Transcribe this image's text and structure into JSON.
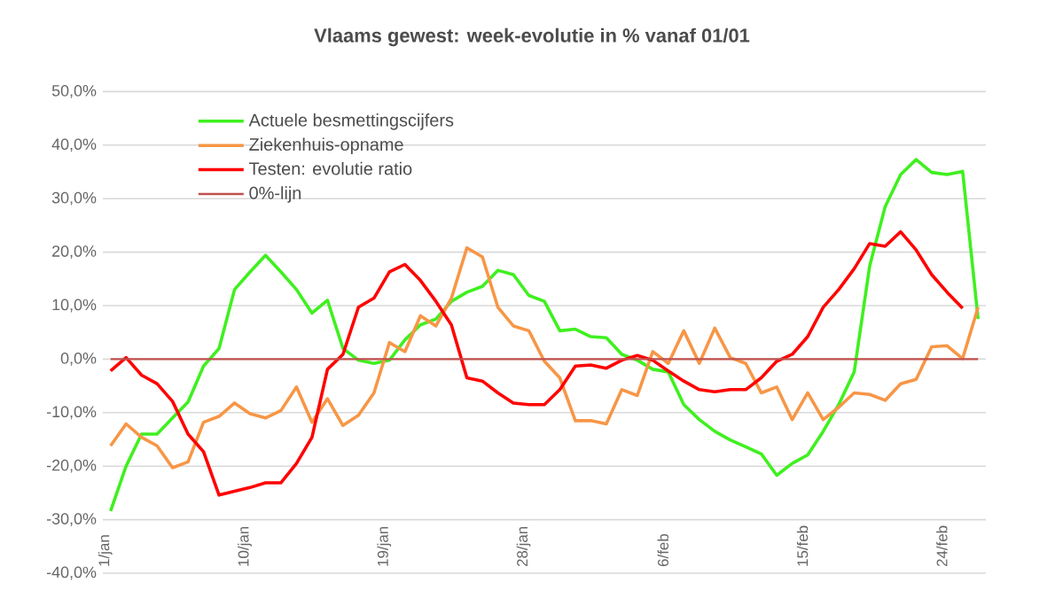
{
  "chart_data": {
    "type": "line",
    "title": "Vlaams gewest: week-evolutie in %  vanaf 01/01",
    "categories": [
      "1/jan",
      null,
      null,
      null,
      null,
      null,
      null,
      null,
      null,
      "10/jan",
      null,
      null,
      null,
      null,
      null,
      null,
      null,
      null,
      "19/jan",
      null,
      null,
      null,
      null,
      null,
      null,
      null,
      null,
      "28/jan",
      null,
      null,
      null,
      null,
      null,
      null,
      null,
      null,
      "6/feb",
      null,
      null,
      null,
      null,
      null,
      null,
      null,
      null,
      "15/feb",
      null,
      null,
      null,
      null,
      null,
      null,
      null,
      null,
      "24/feb",
      null,
      null
    ],
    "series": [
      {
        "name": "Actuele besmettingscijfers",
        "color": "#3ff01f",
        "values": [
          -28.4,
          -20,
          -14,
          -14,
          -11,
          -8,
          -1.3,
          2,
          13,
          16.3,
          19.4,
          16.3,
          13,
          8.6,
          11,
          2,
          -0.2,
          -0.8,
          -0.2,
          3.6,
          6.4,
          7.5,
          10.8,
          12.5,
          13.6,
          16.6,
          15.8,
          11.9,
          10.8,
          5.3,
          5.6,
          4.2,
          4,
          0.9,
          -0.2,
          -1.9,
          -2.4,
          -8.5,
          -11.3,
          -13.5,
          -15.1,
          -16.4,
          -17.7,
          -21.7,
          -19.5,
          -17.9,
          -13.5,
          -8.5,
          -2.4,
          17.4,
          28.5,
          34.5,
          37.3,
          34.9,
          34.5,
          35.1,
          7.5
        ]
      },
      {
        "name": "Ziekenhuis-opname",
        "color": "#f79646",
        "values": [
          -16.2,
          -12.1,
          -14.6,
          -16.2,
          -20.3,
          -19.2,
          -11.8,
          -10.7,
          -8.2,
          -10.2,
          -11,
          -9.6,
          -5.2,
          -11.8,
          -7.4,
          -12.4,
          -10.5,
          -6.3,
          3.1,
          1.4,
          8.1,
          6.2,
          11.4,
          20.8,
          19.1,
          9.7,
          6.2,
          5.3,
          -0.4,
          -3.5,
          -11.5,
          -11.5,
          -12.1,
          -5.7,
          -6.8,
          1.4,
          -0.8,
          5.3,
          -0.8,
          5.8,
          0.3,
          -0.8,
          -6.3,
          -5.2,
          -11.3,
          -6.3,
          -11.3,
          -9,
          -6.3,
          -6.6,
          -7.7,
          -4.6,
          -3.8,
          2.3,
          2.5,
          0.1,
          9.7
        ]
      },
      {
        "name": "Testen: evolutie ratio",
        "color": "#ff0000",
        "values": [
          -2.2,
          0.3,
          -3,
          -4.6,
          -7.9,
          -14,
          -17.3,
          -25.4,
          -24.7,
          -24,
          -23.1,
          -23.1,
          -19.5,
          -14.6,
          -1.9,
          0.9,
          9.7,
          11.4,
          16.3,
          17.7,
          14.7,
          10.8,
          6.4,
          -3.5,
          -4.1,
          -6.3,
          -8.2,
          -8.5,
          -8.5,
          -5.7,
          -1.3,
          -1.1,
          -1.7,
          -0.2,
          0.7,
          -0.2,
          -2.2,
          -4.1,
          -5.7,
          -6.1,
          -5.7,
          -5.7,
          -3.5,
          -0.4,
          0.9,
          4.2,
          9.7,
          13,
          16.9,
          21.6,
          21.1,
          23.8,
          20.4,
          15.8,
          12.5,
          9.5,
          null
        ]
      },
      {
        "name": "0%-lijn",
        "color": "#c0504d",
        "values": [
          0,
          0,
          0,
          0,
          0,
          0,
          0,
          0,
          0,
          0,
          0,
          0,
          0,
          0,
          0,
          0,
          0,
          0,
          0,
          0,
          0,
          0,
          0,
          0,
          0,
          0,
          0,
          0,
          0,
          0,
          0,
          0,
          0,
          0,
          0,
          0,
          0,
          0,
          0,
          0,
          0,
          0,
          0,
          0,
          0,
          0,
          0,
          0,
          0,
          0,
          0,
          0,
          0,
          0,
          0,
          0,
          0
        ]
      }
    ],
    "ylim": [
      -40,
      50
    ],
    "yticks": [
      {
        "value": -40,
        "label": "-40,0%"
      },
      {
        "value": -30,
        "label": "-30,0%"
      },
      {
        "value": -20,
        "label": "-20,0%"
      },
      {
        "value": -10,
        "label": "-10,0%"
      },
      {
        "value": 0,
        "label": "0,0%"
      },
      {
        "value": 10,
        "label": "10,0%"
      },
      {
        "value": 20,
        "label": "20,0%"
      },
      {
        "value": 30,
        "label": "30,0%"
      },
      {
        "value": 40,
        "label": "40,0%"
      },
      {
        "value": 50,
        "label": "50,0%"
      }
    ],
    "grid": "y",
    "legend": "top left"
  }
}
